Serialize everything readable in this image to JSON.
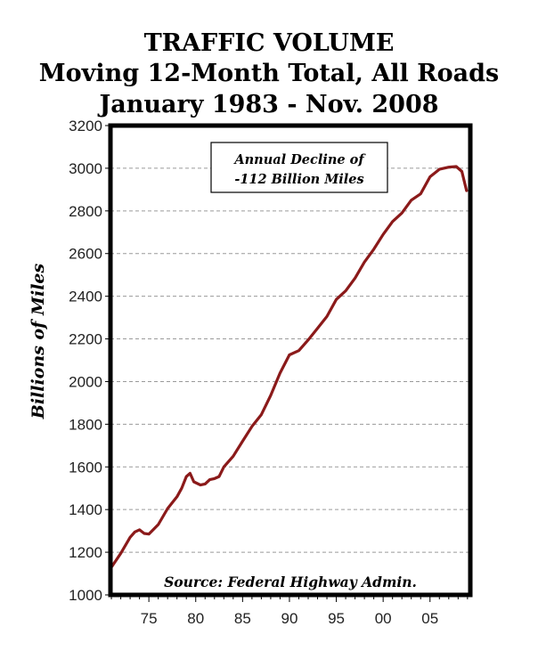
{
  "chart_data": {
    "type": "line",
    "title": "TRAFFIC  VOLUME",
    "subtitle_lines": [
      "Moving 12-Month Total, All Roads",
      "January 1983 - Nov. 2008"
    ],
    "xlabel": "",
    "ylabel": "Billions of Miles",
    "xlim": [
      1970.9,
      2009.3
    ],
    "ylim": [
      1000,
      3200
    ],
    "x_ticks": [
      1975,
      1980,
      1985,
      1990,
      1995,
      2000,
      2005
    ],
    "x_tick_labels": [
      "75",
      "80",
      "85",
      "90",
      "95",
      "00",
      "05"
    ],
    "y_ticks": [
      1000,
      1200,
      1400,
      1600,
      1800,
      2000,
      2200,
      2400,
      2600,
      2800,
      3000,
      3200
    ],
    "y_tick_labels": [
      "1000",
      "1200",
      "1400",
      "1600",
      "1800",
      "2000",
      "2200",
      "2400",
      "2600",
      "2800",
      "3000",
      "3200"
    ],
    "grid": true,
    "annotation_lines": [
      "Annual Decline of",
      "-112 Billion Miles"
    ],
    "source_note": "Source: Federal Highway Admin.",
    "line_color": "#8b1a1a",
    "series": [
      {
        "x": [
          1971,
          1972,
          1973,
          1973.5,
          1974,
          1974.5,
          1975,
          1976,
          1977,
          1978,
          1978.5,
          1979,
          1979.4,
          1979.8,
          1980.5,
          1981,
          1981.5,
          1982,
          1982.5,
          1983,
          1984,
          1985,
          1986,
          1987,
          1988,
          1989,
          1990,
          1991,
          1992,
          1993,
          1994,
          1995,
          1996,
          1997,
          1998,
          1999,
          2000,
          2001,
          2002,
          2003,
          2004,
          2005,
          2006,
          2007,
          2007.8,
          2008.4,
          2008.9
        ],
        "y": [
          1130,
          1195,
          1270,
          1295,
          1305,
          1288,
          1285,
          1330,
          1405,
          1460,
          1500,
          1555,
          1570,
          1530,
          1515,
          1520,
          1540,
          1545,
          1555,
          1600,
          1650,
          1720,
          1790,
          1845,
          1935,
          2040,
          2125,
          2145,
          2195,
          2250,
          2305,
          2385,
          2425,
          2485,
          2560,
          2620,
          2690,
          2750,
          2790,
          2850,
          2880,
          2960,
          2995,
          3005,
          3008,
          2985,
          2895
        ]
      }
    ]
  }
}
